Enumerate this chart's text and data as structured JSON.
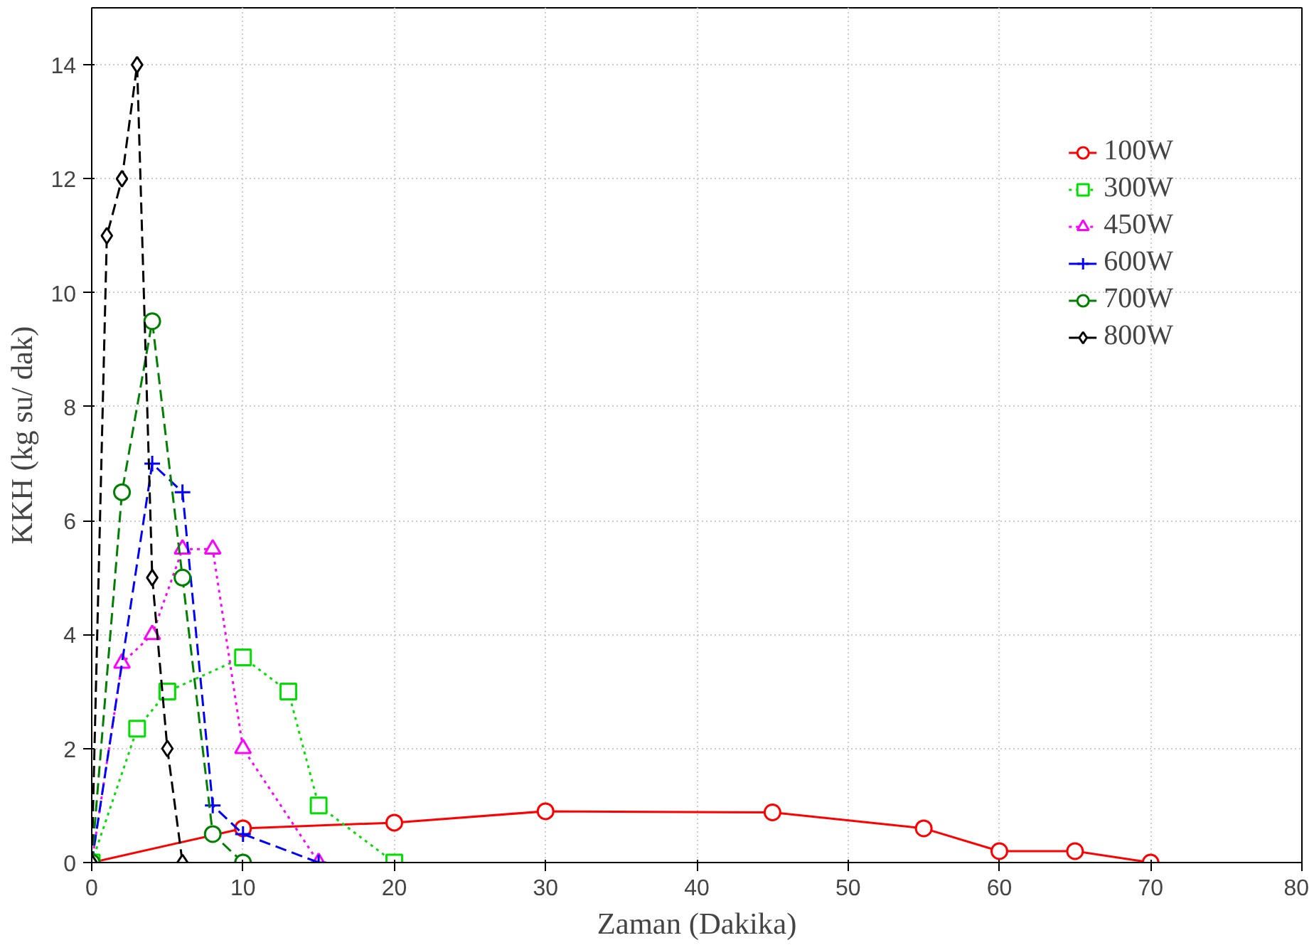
{
  "chart_data": {
    "type": "line",
    "xlabel": "Zaman (Dakika)",
    "ylabel": "KKH (kg su/ dak)",
    "xlim": [
      0,
      80
    ],
    "ylim": [
      0,
      15
    ],
    "xticks": [
      0,
      10,
      20,
      30,
      40,
      50,
      60,
      70,
      80
    ],
    "yticks": [
      0,
      2,
      4,
      6,
      8,
      10,
      12,
      14
    ],
    "grid": true,
    "legend": "top right",
    "series": [
      {
        "name": "100W",
        "color": "#ff0000",
        "marker": "circle",
        "line_style": "solid",
        "x": [
          0,
          10,
          20,
          30,
          45,
          55,
          60,
          65,
          70
        ],
        "values": [
          0,
          0.6,
          0.7,
          0.9,
          0.88,
          0.6,
          0.2,
          0.2,
          0
        ]
      },
      {
        "name": "300W",
        "color": "#00e000",
        "marker": "square",
        "line_style": "dotted",
        "x": [
          0,
          3,
          5,
          10,
          13,
          15,
          20
        ],
        "values": [
          0,
          2.35,
          3,
          3.6,
          3,
          1,
          0
        ]
      },
      {
        "name": "450W",
        "color": "#ff00ff",
        "marker": "triangle",
        "line_style": "dotted",
        "x": [
          0,
          2,
          4,
          6,
          8,
          10,
          15
        ],
        "values": [
          0,
          3.5,
          4,
          5.5,
          5.5,
          2,
          0
        ]
      },
      {
        "name": "600W",
        "color": "#0000ff",
        "marker": "cross",
        "line_style": "dashed",
        "x": [
          0,
          4,
          6,
          8,
          10,
          15
        ],
        "values": [
          0,
          7,
          6.5,
          1,
          0.5,
          0
        ]
      },
      {
        "name": "700W",
        "color": "#008000",
        "marker": "circle",
        "line_style": "dashed",
        "x": [
          0,
          2,
          4,
          6,
          8,
          10
        ],
        "values": [
          0,
          6.5,
          9.5,
          5,
          0.5,
          0
        ]
      },
      {
        "name": "800W",
        "color": "#000000",
        "marker": "diamond",
        "line_style": "dashed",
        "x": [
          0,
          1,
          2,
          3,
          4,
          5,
          6
        ],
        "values": [
          0,
          11,
          12,
          14,
          5,
          2,
          0
        ]
      }
    ]
  }
}
